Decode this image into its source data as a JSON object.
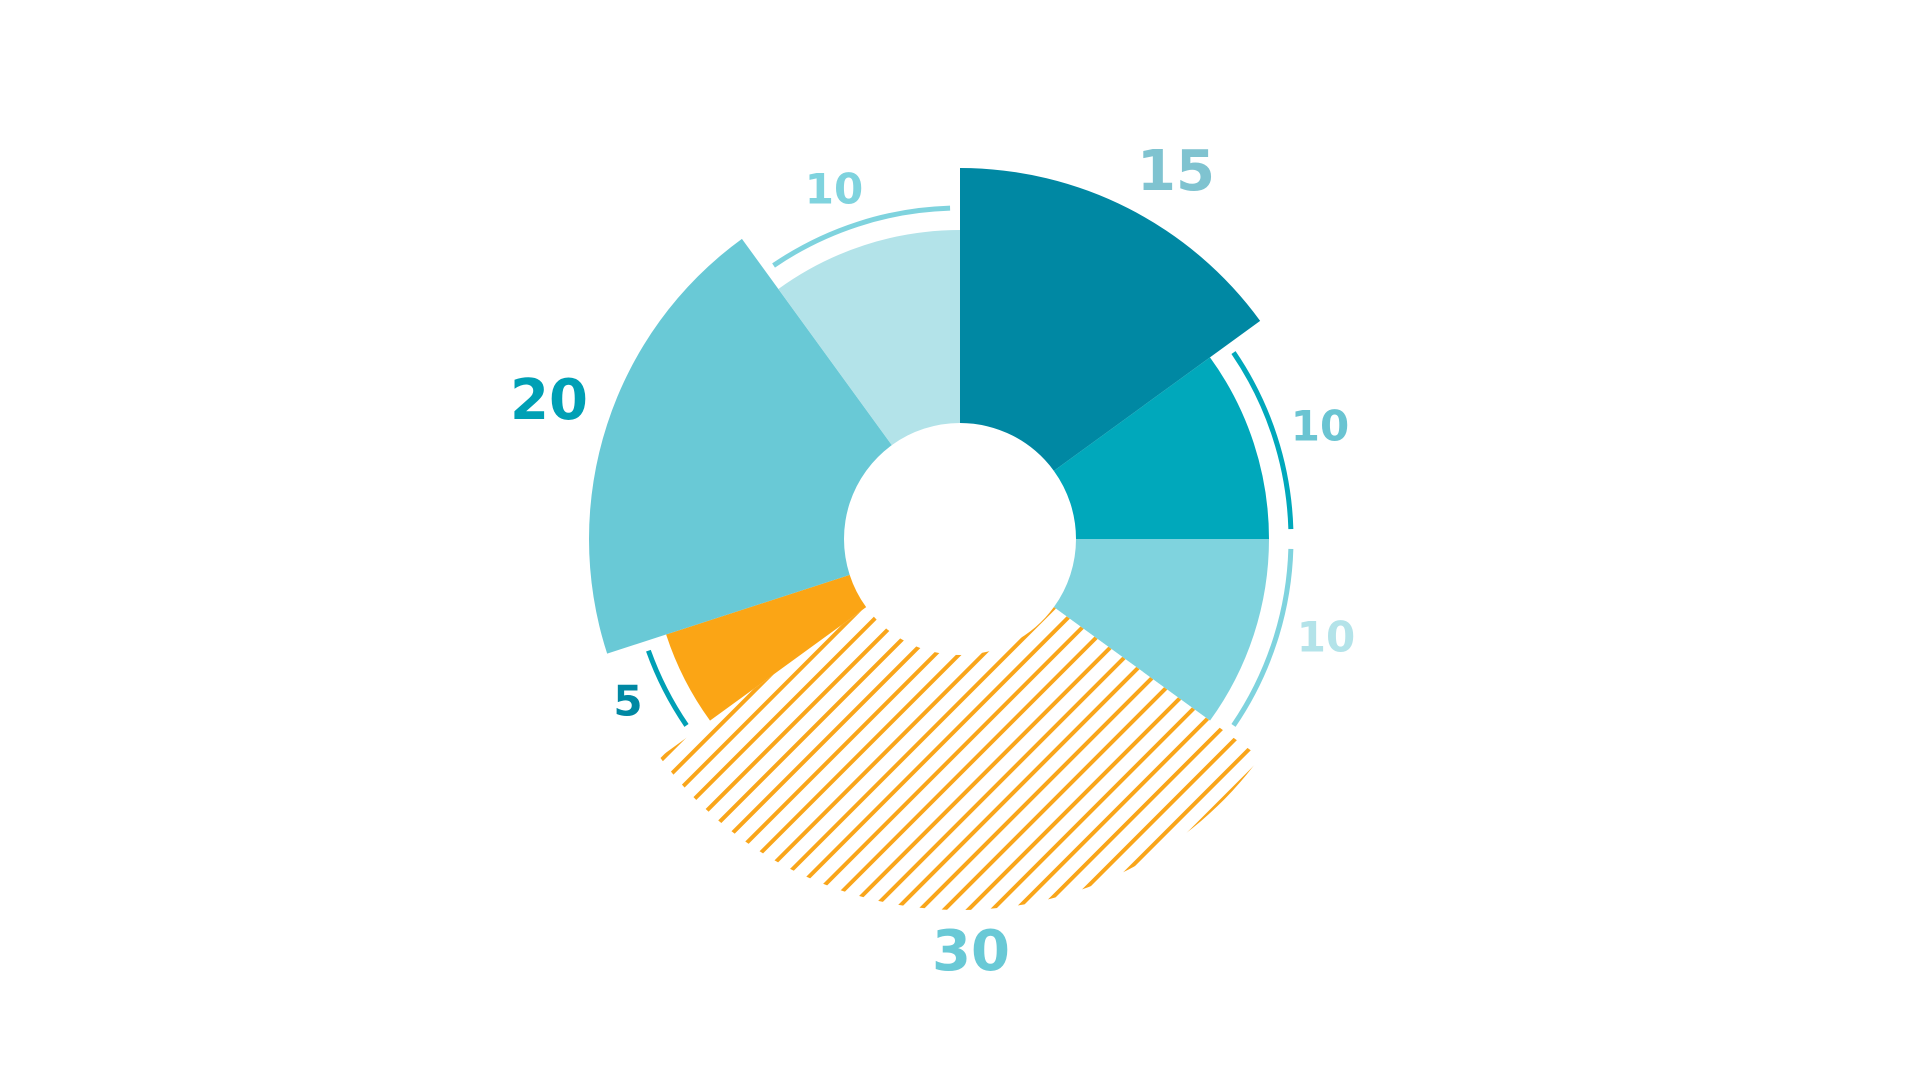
{
  "chart_data": {
    "type": "pie",
    "variant": "donut",
    "title": "",
    "slices": [
      {
        "value": 15,
        "label": "15",
        "color": "#0088a3",
        "label_color": "#7fc3d0",
        "emphasized": true,
        "pattern": "solid",
        "outer_arc": false
      },
      {
        "value": 10,
        "label": "10",
        "color": "#00a8bb",
        "label_color": "#6ac4d2",
        "emphasized": false,
        "pattern": "solid",
        "outer_arc": true,
        "arc_color": "#00a8bb"
      },
      {
        "value": 10,
        "label": "10",
        "color": "#7fd3de",
        "label_color": "#b3e3e9",
        "emphasized": false,
        "pattern": "solid",
        "outer_arc": true,
        "arc_color": "#7fd3de"
      },
      {
        "value": 30,
        "label": "30",
        "color": "#f9a51a",
        "label_color": "#69c9d6",
        "emphasized": true,
        "pattern": "diagonal-hatch",
        "outer_arc": false
      },
      {
        "value": 5,
        "label": "5",
        "color": "#fba515",
        "label_color": "#0088a3",
        "emphasized": false,
        "pattern": "solid",
        "outer_arc": true,
        "arc_color": "#00a0b5"
      },
      {
        "value": 20,
        "label": "20",
        "color": "#69c9d6",
        "label_color": "#00a0b5",
        "emphasized": true,
        "pattern": "solid",
        "outer_arc": false
      },
      {
        "value": 10,
        "label": "10",
        "color": "#b3e3e9",
        "label_color": "#7fd3de",
        "emphasized": false,
        "pattern": "solid",
        "outer_arc": true,
        "arc_color": "#7fd3de"
      }
    ],
    "start": "top",
    "direction": "clockwise",
    "legend": "none"
  }
}
